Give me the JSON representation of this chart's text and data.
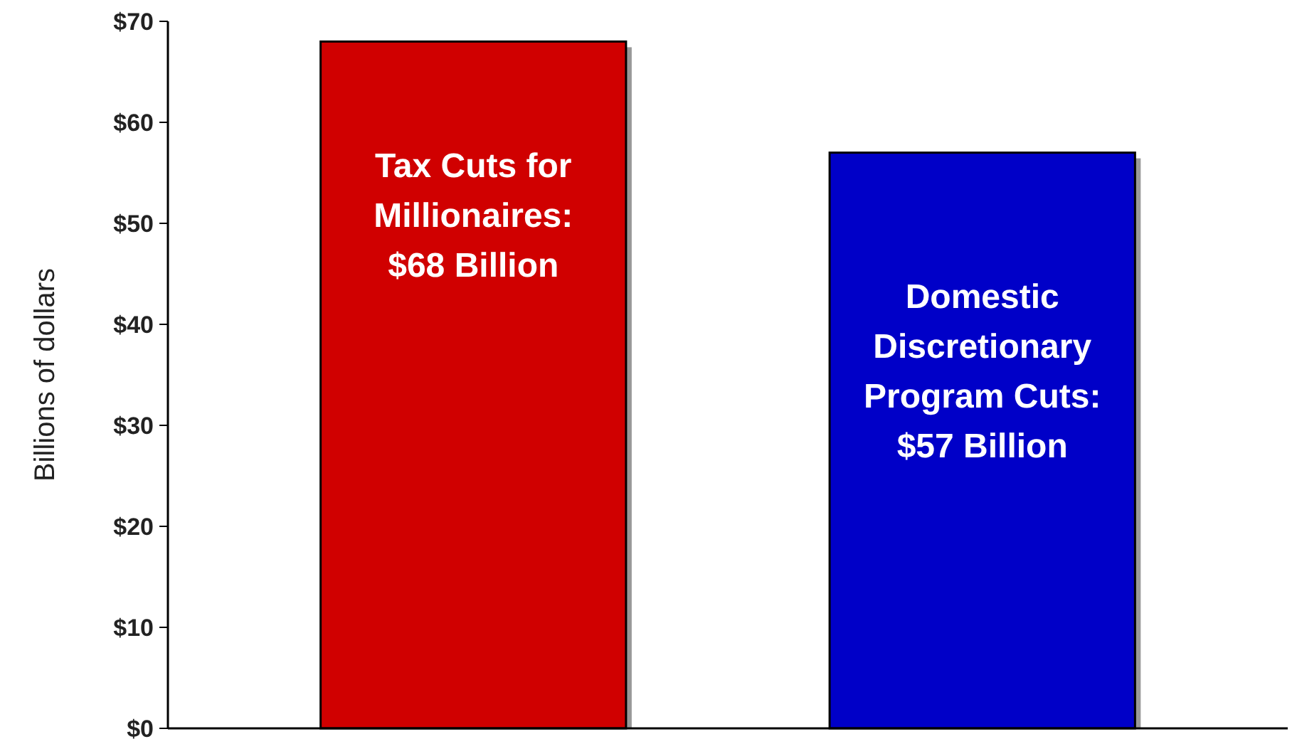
{
  "chart_data": {
    "type": "bar",
    "ylabel": "Billions of dollars",
    "categories": [
      null,
      null
    ],
    "values": [
      68,
      57
    ],
    "colors": [
      "#d00000",
      "#0000c8"
    ],
    "ylim": [
      0,
      70
    ],
    "yticks": [
      {
        "value": 0,
        "label": "$0"
      },
      {
        "value": 10,
        "label": "$10"
      },
      {
        "value": 20,
        "label": "$20"
      },
      {
        "value": 30,
        "label": "$30"
      },
      {
        "value": 40,
        "label": "$40"
      },
      {
        "value": 50,
        "label": "$50"
      },
      {
        "value": 60,
        "label": "$60"
      },
      {
        "value": 70,
        "label": "$70"
      }
    ],
    "grid": false,
    "annotations": [
      "Tax Cuts for Millionaires: $68 Billion",
      "Domestic Discretionary Program Cuts: $57 Billion"
    ]
  }
}
